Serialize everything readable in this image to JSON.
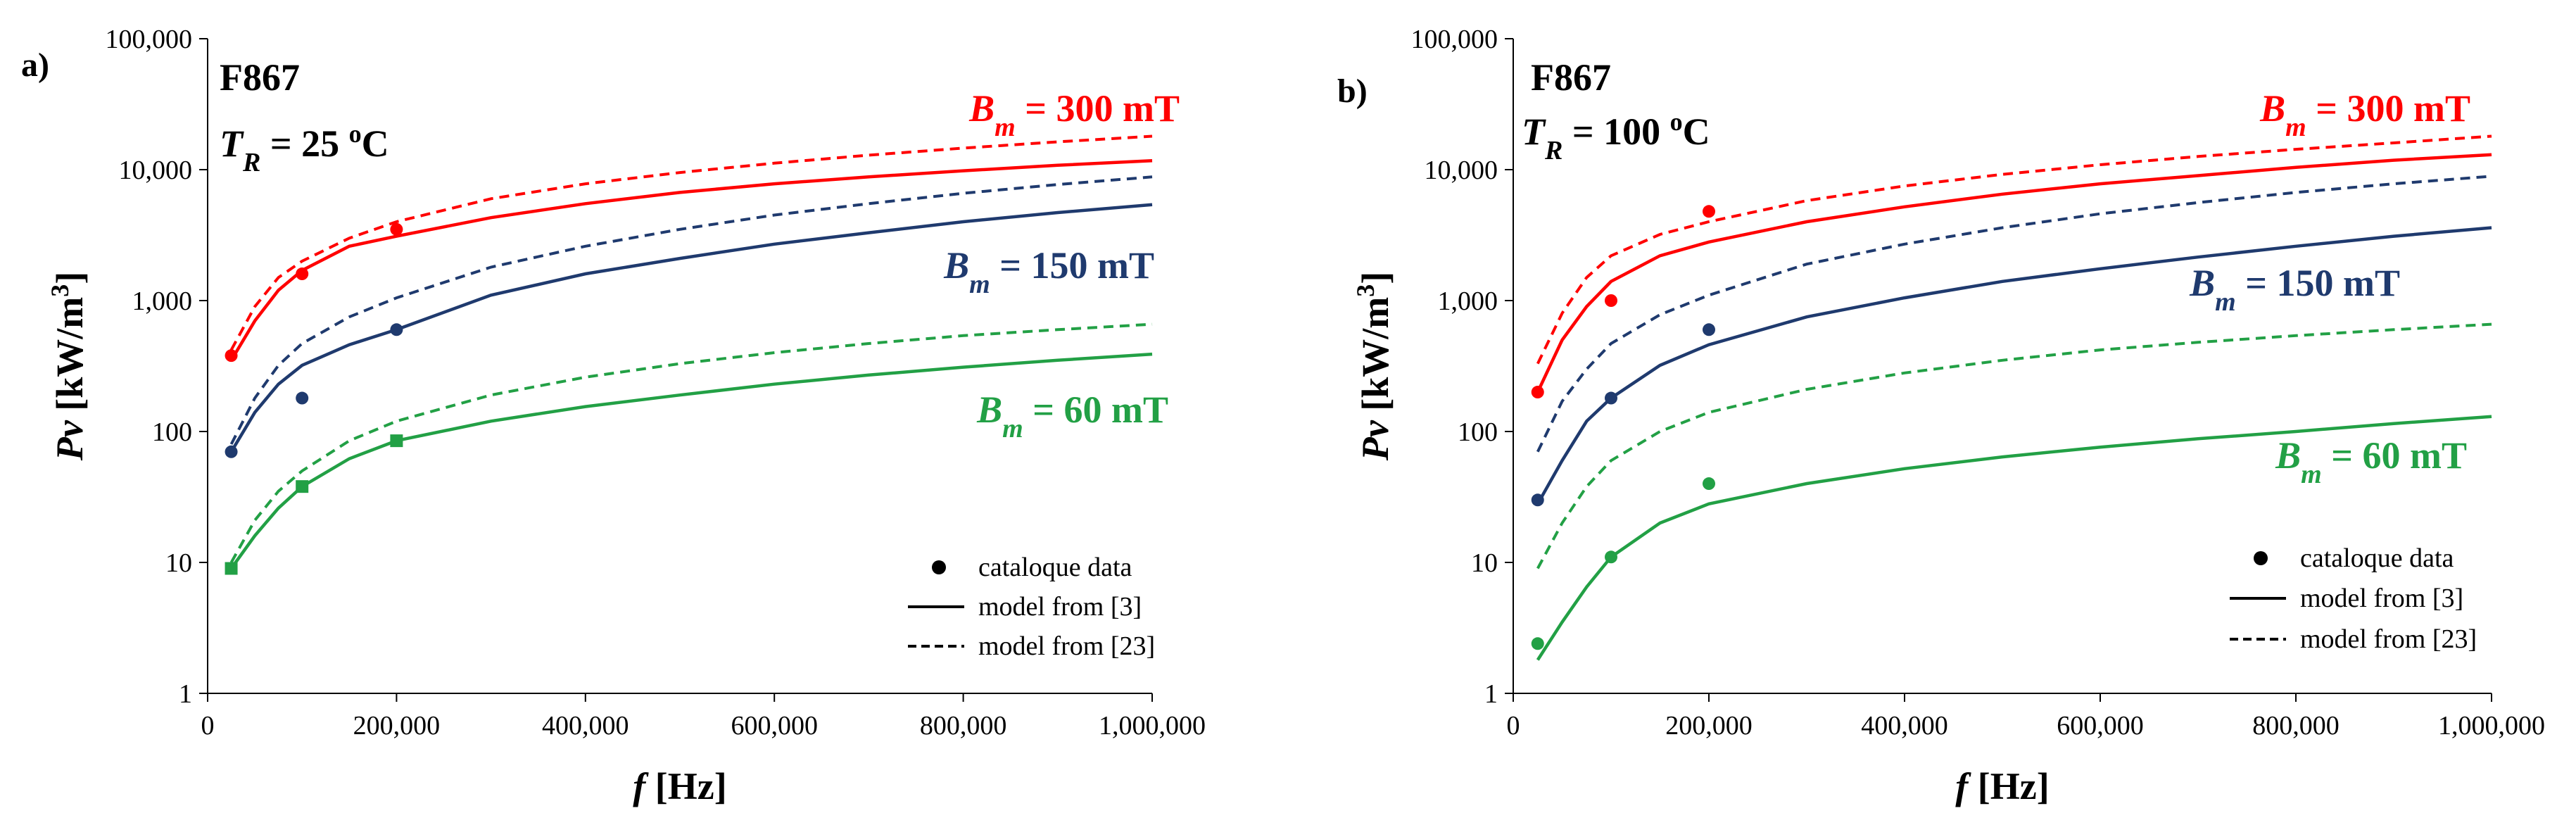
{
  "chart_data": [
    {
      "type": "line",
      "panel_label": "a)",
      "material": "F867",
      "temperature": {
        "symbol": "T",
        "subscript": "R",
        "equals": " = 25 ",
        "unit_sup": "o",
        "unit": "C"
      },
      "xlabel": {
        "symbol": "f",
        "rest": " [Hz]"
      },
      "ylabel": {
        "symbol": "Pv",
        "rest": " [kW/m",
        "sup": "3",
        "close": "]"
      },
      "xlim": [
        0,
        1000000
      ],
      "ylim": [
        1,
        100000
      ],
      "y_scale": "log",
      "grid": false,
      "legend_position": "bottom-right",
      "x_ticks": [
        0,
        200000,
        400000,
        600000,
        800000,
        1000000
      ],
      "x_tick_labels": [
        "0",
        "200,000",
        "400,000",
        "600,000",
        "800,000",
        "1,000,000"
      ],
      "y_ticks": [
        1,
        10,
        100,
        1000,
        10000,
        100000
      ],
      "y_tick_labels": [
        "1",
        "10",
        "100",
        "1,000",
        "10,000",
        "100,000"
      ],
      "legend": [
        {
          "kind": "marker",
          "text": "cataloque data"
        },
        {
          "kind": "solid",
          "text": "model from [3]"
        },
        {
          "kind": "dashed",
          "text": "model from [23]"
        }
      ],
      "series": [
        {
          "name": "B_m = 300 mT",
          "label_symbol": "B",
          "label_sub": "m",
          "label_rest": " = 300 mT",
          "color": "#ff0000",
          "model_3": {
            "x": [
              25000,
              50000,
              75000,
              100000,
              150000,
              200000,
              300000,
              400000,
              500000,
              600000,
              700000,
              800000,
              900000,
              1000000
            ],
            "y": [
              350,
              700,
              1200,
              1700,
              2600,
              3100,
              4300,
              5500,
              6700,
              7800,
              8800,
              9800,
              10800,
              11700
            ]
          },
          "model_23": {
            "x": [
              25000,
              50000,
              75000,
              100000,
              150000,
              200000,
              300000,
              400000,
              500000,
              600000,
              700000,
              800000,
              900000,
              1000000
            ],
            "y": [
              420,
              900,
              1500,
              2000,
              3000,
              4000,
              6000,
              7800,
              9500,
              11200,
              12900,
              14600,
              16300,
              18000
            ]
          },
          "catalogue": {
            "marker": "circle",
            "x": [
              25000,
              100000,
              200000
            ],
            "y": [
              380,
              1600,
              3500
            ]
          }
        },
        {
          "name": "B_m = 150 mT",
          "label_symbol": "B",
          "label_sub": "m",
          "label_rest": " = 150 mT",
          "color": "#1f3a6e",
          "model_3": {
            "x": [
              25000,
              50000,
              75000,
              100000,
              150000,
              200000,
              300000,
              400000,
              500000,
              600000,
              700000,
              800000,
              900000,
              1000000
            ],
            "y": [
              70,
              140,
              230,
              320,
              460,
              600,
              1100,
              1600,
              2100,
              2700,
              3300,
              4000,
              4700,
              5400
            ]
          },
          "model_23": {
            "x": [
              25000,
              50000,
              75000,
              100000,
              150000,
              200000,
              300000,
              400000,
              500000,
              600000,
              700000,
              800000,
              900000,
              1000000
            ],
            "y": [
              80,
              180,
              320,
              470,
              750,
              1050,
              1800,
              2600,
              3500,
              4500,
              5500,
              6600,
              7700,
              8800
            ]
          },
          "catalogue": {
            "marker": "circle",
            "x": [
              25000,
              100000,
              200000
            ],
            "y": [
              70,
              180,
              600
            ]
          }
        },
        {
          "name": "B_m = 60 mT",
          "label_symbol": "B",
          "label_sub": "m",
          "label_rest": " = 60 mT",
          "color": "#22a045",
          "model_3": {
            "x": [
              25000,
              50000,
              75000,
              100000,
              150000,
              200000,
              300000,
              400000,
              500000,
              600000,
              700000,
              800000,
              900000,
              1000000
            ],
            "y": [
              9,
              16,
              26,
              38,
              62,
              85,
              120,
              155,
              190,
              230,
              270,
              310,
              350,
              390
            ]
          },
          "model_23": {
            "x": [
              25000,
              50000,
              75000,
              100000,
              150000,
              200000,
              300000,
              400000,
              500000,
              600000,
              700000,
              800000,
              900000,
              1000000
            ],
            "y": [
              10,
              21,
              35,
              50,
              85,
              120,
              190,
              260,
              330,
              400,
              470,
              540,
              600,
              660
            ]
          },
          "catalogue": {
            "marker": "square",
            "x": [
              25000,
              100000,
              200000
            ],
            "y": [
              9,
              38,
              85
            ]
          }
        }
      ]
    },
    {
      "type": "line",
      "panel_label": "b)",
      "material": "F867",
      "temperature": {
        "symbol": "T",
        "subscript": "R",
        "equals": " = 100 ",
        "unit_sup": "o",
        "unit": "C"
      },
      "xlabel": {
        "symbol": "f",
        "rest": " [Hz]"
      },
      "ylabel": {
        "symbol": "Pv",
        "rest": " [kW/m",
        "sup": "3",
        "close": "]"
      },
      "xlim": [
        0,
        1000000
      ],
      "ylim": [
        1,
        100000
      ],
      "y_scale": "log",
      "grid": false,
      "legend_position": "bottom-right",
      "x_ticks": [
        0,
        200000,
        400000,
        600000,
        800000,
        1000000
      ],
      "x_tick_labels": [
        "0",
        "200,000",
        "400,000",
        "600,000",
        "800,000",
        "1,000,000"
      ],
      "y_ticks": [
        1,
        10,
        100,
        1000,
        10000,
        100000
      ],
      "y_tick_labels": [
        "1",
        "10",
        "100",
        "1,000",
        "10,000",
        "100,000"
      ],
      "legend": [
        {
          "kind": "marker",
          "text": "cataloque data"
        },
        {
          "kind": "solid",
          "text": "model from [3]"
        },
        {
          "kind": "dashed",
          "text": "model from [23]"
        }
      ],
      "series": [
        {
          "name": "B_m = 300 mT",
          "label_symbol": "B",
          "label_sub": "m",
          "label_rest": " = 300 mT",
          "color": "#ff0000",
          "model_3": {
            "x": [
              25000,
              50000,
              75000,
              100000,
              150000,
              200000,
              300000,
              400000,
              500000,
              600000,
              700000,
              800000,
              900000,
              1000000
            ],
            "y": [
              200,
              500,
              900,
              1400,
              2200,
              2800,
              4000,
              5200,
              6500,
              7800,
              9000,
              10400,
              11800,
              13000
            ]
          },
          "model_23": {
            "x": [
              25000,
              50000,
              75000,
              100000,
              150000,
              200000,
              300000,
              400000,
              500000,
              600000,
              700000,
              800000,
              900000,
              1000000
            ],
            "y": [
              330,
              800,
              1500,
              2200,
              3200,
              4000,
              5800,
              7500,
              9200,
              10900,
              12600,
              14300,
              16000,
              18000
            ]
          },
          "catalogue": {
            "marker": "circle",
            "x": [
              25000,
              100000,
              200000
            ],
            "y": [
              200,
              1000,
              4800
            ]
          }
        },
        {
          "name": "B_m = 150 mT",
          "label_symbol": "B",
          "label_sub": "m",
          "label_rest": " = 150 mT",
          "color": "#1f3a6e",
          "model_3": {
            "x": [
              25000,
              50000,
              75000,
              100000,
              150000,
              200000,
              300000,
              400000,
              500000,
              600000,
              700000,
              800000,
              900000,
              1000000
            ],
            "y": [
              28,
              60,
              120,
              180,
              320,
              460,
              750,
              1050,
              1400,
              1750,
              2150,
              2600,
              3100,
              3600
            ]
          },
          "model_23": {
            "x": [
              25000,
              50000,
              75000,
              100000,
              150000,
              200000,
              300000,
              400000,
              500000,
              600000,
              700000,
              800000,
              900000,
              1000000
            ],
            "y": [
              70,
              170,
              300,
              470,
              780,
              1100,
              1900,
              2700,
              3600,
              4600,
              5600,
              6700,
              7800,
              8900
            ]
          },
          "catalogue": {
            "marker": "circle",
            "x": [
              25000,
              100000,
              200000
            ],
            "y": [
              30,
              180,
              600
            ]
          }
        },
        {
          "name": "B_m = 60 mT",
          "label_symbol": "B",
          "label_sub": "m",
          "label_rest": " = 60 mT",
          "color": "#22a045",
          "model_3": {
            "x": [
              25000,
              50000,
              75000,
              100000,
              150000,
              200000,
              300000,
              400000,
              500000,
              600000,
              700000,
              800000,
              900000,
              1000000
            ],
            "y": [
              1.8,
              3.5,
              6.5,
              11,
              20,
              28,
              40,
              52,
              64,
              76,
              88,
              100,
              115,
              130
            ]
          },
          "model_23": {
            "x": [
              25000,
              50000,
              75000,
              100000,
              150000,
              200000,
              300000,
              400000,
              500000,
              600000,
              700000,
              800000,
              900000,
              1000000
            ],
            "y": [
              9,
              20,
              38,
              60,
              100,
              140,
              210,
              280,
              350,
              420,
              480,
              540,
              600,
              660
            ]
          },
          "catalogue": {
            "marker": "circle",
            "x": [
              25000,
              100000,
              200000
            ],
            "y": [
              2.4,
              11,
              40
            ]
          }
        }
      ]
    }
  ]
}
